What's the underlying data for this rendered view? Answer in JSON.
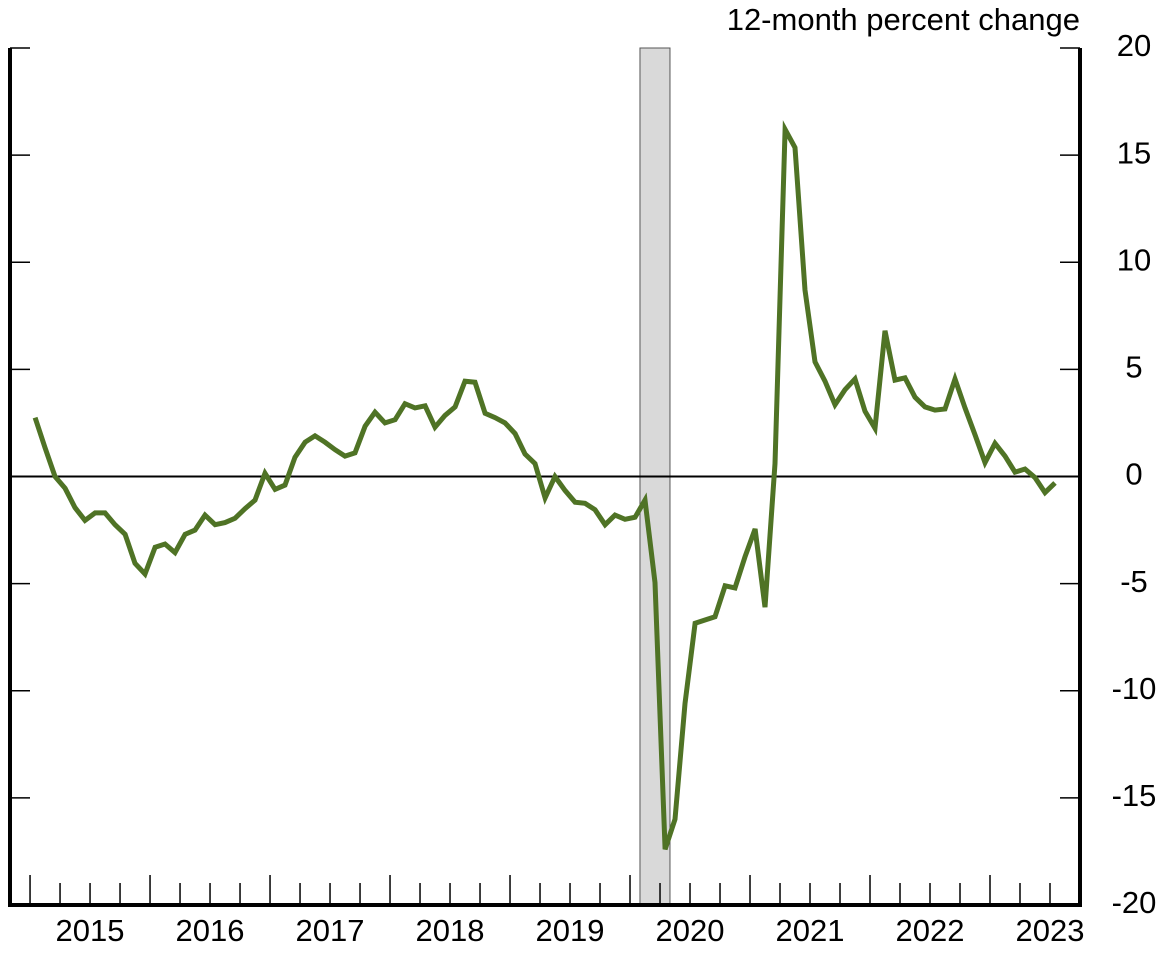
{
  "chart_data": {
    "type": "line",
    "y_axis_label": "12-month percent change",
    "x": [
      2015.042,
      2015.125,
      2015.208,
      2015.292,
      2015.375,
      2015.458,
      2015.542,
      2015.625,
      2015.708,
      2015.792,
      2015.875,
      2015.958,
      2016.042,
      2016.125,
      2016.208,
      2016.292,
      2016.375,
      2016.458,
      2016.542,
      2016.625,
      2016.708,
      2016.792,
      2016.875,
      2016.958,
      2017.042,
      2017.125,
      2017.208,
      2017.292,
      2017.375,
      2017.458,
      2017.542,
      2017.625,
      2017.708,
      2017.792,
      2017.875,
      2017.958,
      2018.042,
      2018.125,
      2018.208,
      2018.292,
      2018.375,
      2018.458,
      2018.542,
      2018.625,
      2018.708,
      2018.792,
      2018.875,
      2018.958,
      2019.042,
      2019.125,
      2019.208,
      2019.292,
      2019.375,
      2019.458,
      2019.542,
      2019.625,
      2019.708,
      2019.792,
      2019.875,
      2019.958,
      2020.042,
      2020.125,
      2020.208,
      2020.292,
      2020.375,
      2020.458,
      2020.542,
      2020.625,
      2020.708,
      2020.792,
      2020.875,
      2020.958,
      2021.042,
      2021.125,
      2021.208,
      2021.292,
      2021.375,
      2021.458,
      2021.542,
      2021.625,
      2021.708,
      2021.792,
      2021.875,
      2021.958,
      2022.042,
      2022.125,
      2022.208,
      2022.292,
      2022.375,
      2022.458,
      2022.542,
      2022.625,
      2022.708,
      2022.792,
      2022.875,
      2022.958,
      2023.042,
      2023.125,
      2023.208,
      2023.292,
      2023.375,
      2023.458,
      2023.542
    ],
    "series": [
      {
        "color": "#4f7325",
        "values": [
          2.75,
          1.35,
          0,
          -0.55,
          -1.45,
          -2.05,
          -1.7,
          -1.7,
          -2.25,
          -2.7,
          -4.05,
          -4.55,
          -3.3,
          -3.15,
          -3.55,
          -2.7,
          -2.5,
          -1.8,
          -2.25,
          -2.15,
          -1.95,
          -1.5,
          -1.1,
          0.15,
          -0.6,
          -0.4,
          0.9,
          1.6,
          1.9,
          1.6,
          1.25,
          0.95,
          1.1,
          2.35,
          3.0,
          2.5,
          2.65,
          3.4,
          3.2,
          3.3,
          2.3,
          2.85,
          3.25,
          4.45,
          4.4,
          2.95,
          2.75,
          2.5,
          2.0,
          1.05,
          0.6,
          -1.0,
          0,
          -0.65,
          -1.2,
          -1.25,
          -1.55,
          -2.25,
          -1.8,
          -2.0,
          -1.9,
          -1.1,
          -4.95,
          -17.4,
          -16.0,
          -10.6,
          -6.85,
          -6.7,
          -6.55,
          -5.1,
          -5.2,
          -3.75,
          -2.45,
          -6.1,
          0.6,
          16.2,
          15.35,
          8.7,
          5.35,
          4.45,
          3.35,
          4.05,
          4.55,
          3.05,
          2.25,
          6.8,
          4.5,
          4.6,
          3.7,
          3.25,
          3.1,
          3.15,
          4.55,
          3.2,
          1.95,
          0.65,
          1.55,
          0.95,
          0.2,
          0.35,
          -0.05,
          -0.75,
          -0.3
        ]
      }
    ],
    "shaded_period": [
      2020.083,
      2020.333
    ],
    "xlim": [
      2014.833,
      2023.75
    ],
    "xticks": [
      {
        "value": 2015.5,
        "label": "2015"
      },
      {
        "value": 2016.5,
        "label": "2016"
      },
      {
        "value": 2017.5,
        "label": "2017"
      },
      {
        "value": 2018.5,
        "label": "2018"
      },
      {
        "value": 2019.5,
        "label": "2019"
      },
      {
        "value": 2020.5,
        "label": "2020"
      },
      {
        "value": 2021.5,
        "label": "2021"
      },
      {
        "value": 2022.5,
        "label": "2022"
      },
      {
        "value": 2023.5,
        "label": "2023"
      }
    ],
    "ylim": [
      -20,
      20
    ],
    "yticks": [
      -20,
      -15,
      -10,
      -5,
      0,
      5,
      10,
      15,
      20
    ]
  }
}
